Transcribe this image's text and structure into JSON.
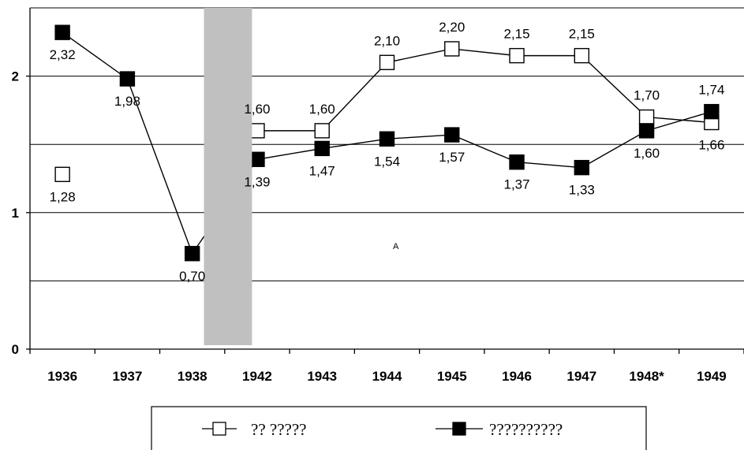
{
  "chart_data": {
    "type": "line",
    "title": "",
    "xlabel": "",
    "ylabel": "",
    "categories": [
      "1936",
      "1937",
      "1938",
      "1942",
      "1943",
      "1944",
      "1945",
      "1946",
      "1947",
      "1948*",
      "1949"
    ],
    "y_ticks": [
      "0",
      "1",
      "2"
    ],
    "ylim": [
      0,
      2.5
    ],
    "grid": true,
    "gridlines": [
      0.5,
      1,
      1.5,
      2,
      2.5
    ],
    "shaded_region": {
      "from_category": "1938",
      "to_category": "1942",
      "color": "#c0c0c0"
    },
    "annotation": "A",
    "legend_position": "bottom",
    "series": [
      {
        "name": "?? ?????",
        "marker": "open-square",
        "color": "#ffffff",
        "values": [
          1.28,
          null,
          null,
          1.6,
          1.6,
          2.1,
          2.2,
          2.15,
          2.15,
          1.7,
          1.66
        ],
        "labels": [
          "1,28",
          "",
          "",
          "1,60",
          "1,60",
          "2,10",
          "2,20",
          "2,15",
          "2,15",
          "1,70",
          "1,66"
        ]
      },
      {
        "name": "??????????",
        "marker": "filled-square",
        "color": "#000000",
        "values": [
          2.32,
          1.98,
          0.7,
          1.39,
          1.47,
          1.54,
          1.57,
          1.37,
          1.33,
          1.6,
          1.74
        ],
        "labels": [
          "2,32",
          "1,98",
          "0,70",
          "1,39",
          "1,47",
          "1,54",
          "1,57",
          "1,37",
          "1,33",
          "1,60",
          "1,74"
        ]
      }
    ]
  }
}
